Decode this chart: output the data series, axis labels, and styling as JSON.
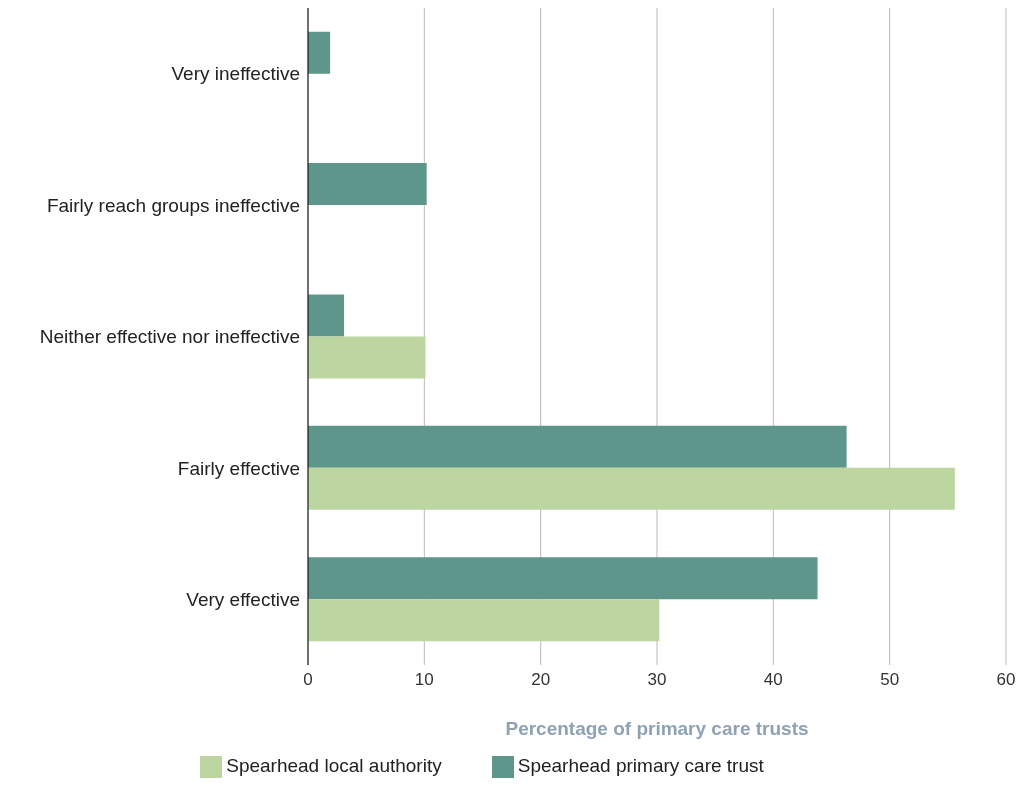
{
  "chart_data": {
    "type": "bar",
    "orientation": "horizontal",
    "xlabel": "Percentage of primary care trusts",
    "categories": [
      "Very ineffective",
      "Fairly reach groups ineffective",
      "Neither effective nor ineffective",
      "Fairly effective",
      "Very effective"
    ],
    "series": [
      {
        "name": "Spearhead primary care trust",
        "color": "#5f968b",
        "values": [
          1.9,
          10.2,
          3.1,
          46.3,
          43.8
        ]
      },
      {
        "name": "Spearhead local authority",
        "color": "#bdd5a0",
        "values": [
          null,
          null,
          10.1,
          55.6,
          30.2
        ]
      }
    ],
    "xlim": [
      0,
      60
    ],
    "xticks": [
      0,
      10,
      20,
      30,
      40,
      50,
      60
    ],
    "grid": "x",
    "legend": "bottom"
  }
}
